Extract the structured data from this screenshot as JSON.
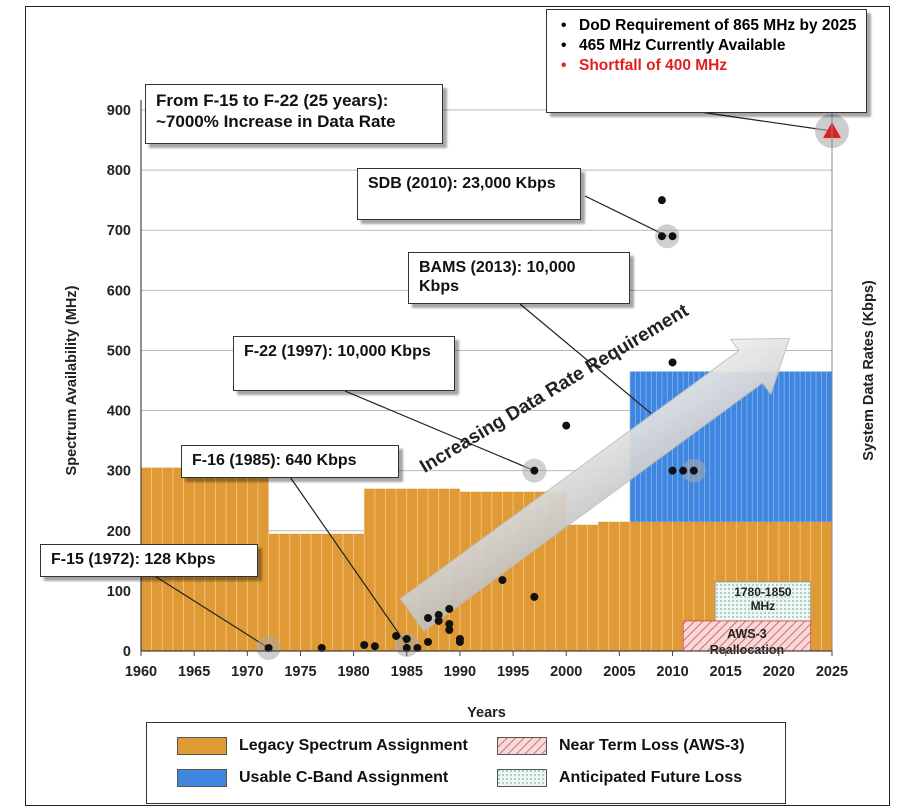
{
  "chart_data": {
    "type": "bar",
    "xlabel": "Years",
    "ylabel_left": "Spectrum Availability (MHz)",
    "ylabel_right": "System Data Rates (Kbps)",
    "xlim": [
      1960,
      2025
    ],
    "ylim": [
      0,
      900
    ],
    "x_ticks": [
      "1960",
      "1965",
      "1970",
      "1975",
      "1980",
      "1985",
      "1990",
      "1995",
      "2000",
      "2005",
      "2010",
      "2015",
      "2020",
      "2025"
    ],
    "y_ticks": [
      "0",
      "100",
      "200",
      "300",
      "400",
      "500",
      "600",
      "700",
      "800",
      "900"
    ],
    "grid": "horizontal",
    "legacy_spectrum": [
      {
        "start": 1960,
        "end": 1972,
        "value": 305
      },
      {
        "start": 1972,
        "end": 1981,
        "value": 195
      },
      {
        "start": 1981,
        "end": 1990,
        "value": 270
      },
      {
        "start": 1990,
        "end": 2000,
        "value": 265
      },
      {
        "start": 2000,
        "end": 2003,
        "value": 210
      },
      {
        "start": 2003,
        "end": 2025,
        "value": 215
      }
    ],
    "c_band": {
      "start": 2006,
      "end": 2025,
      "value": 465
    },
    "near_term_loss": {
      "start": 2011,
      "end": 2023,
      "value": 50,
      "label": "AWS-3 Reallocation"
    },
    "future_loss": {
      "start": 2014,
      "end": 2023,
      "value": 115,
      "label": "1780-1850 MHz"
    },
    "system_points": [
      {
        "x": 1972,
        "y": 5
      },
      {
        "x": 1977,
        "y": 5
      },
      {
        "x": 1981,
        "y": 10
      },
      {
        "x": 1982,
        "y": 8
      },
      {
        "x": 1984,
        "y": 25
      },
      {
        "x": 1985,
        "y": 20
      },
      {
        "x": 1985,
        "y": 5
      },
      {
        "x": 1986,
        "y": 5
      },
      {
        "x": 1987,
        "y": 55
      },
      {
        "x": 1987,
        "y": 15
      },
      {
        "x": 1988,
        "y": 60
      },
      {
        "x": 1988,
        "y": 50
      },
      {
        "x": 1989,
        "y": 70
      },
      {
        "x": 1989,
        "y": 45
      },
      {
        "x": 1989,
        "y": 35
      },
      {
        "x": 1990,
        "y": 20
      },
      {
        "x": 1990,
        "y": 15
      },
      {
        "x": 1994,
        "y": 118
      },
      {
        "x": 1997,
        "y": 90
      },
      {
        "x": 1997,
        "y": 300
      },
      {
        "x": 2000,
        "y": 375
      },
      {
        "x": 2009,
        "y": 750
      },
      {
        "x": 2009,
        "y": 690
      },
      {
        "x": 2010,
        "y": 690
      },
      {
        "x": 2010,
        "y": 480
      },
      {
        "x": 2010,
        "y": 300
      },
      {
        "x": 2011,
        "y": 300
      },
      {
        "x": 2012,
        "y": 300
      }
    ],
    "requirement_point": {
      "x": 2025,
      "y": 865
    }
  },
  "annotations": {
    "headline": "From F-15 to F-22 (25 years): ~7000% Increase in Data Rate",
    "sdb": "SDB (2010): 23,000 Kbps",
    "bams": "BAMS (2013): 10,000 Kbps",
    "f22": "F-22 (1997): 10,000 Kbps",
    "f16": "F-16 (1985): 640 Kbps",
    "f15": "F-15 (1972): 128 Kbps",
    "arrow": "Increasing Data Rate Requirement",
    "future_loss_label": "1780-1850 MHz",
    "near_term_label": "AWS-3 Reallocation"
  },
  "requirement_box": {
    "line1": "DoD Requirement of 865 MHz by 2025",
    "line2": "465 MHz Currently Available",
    "line3": "Shortfall of 400 MHz"
  },
  "legend": {
    "legacy": "Legacy Spectrum Assignment",
    "cband": "Usable C-Band Assignment",
    "near_term": "Near Term Loss (AWS-3)",
    "future": "Anticipated Future Loss"
  },
  "colors": {
    "legacy": "#e09a35",
    "cband": "#3f86e0",
    "near_term": "#e2a3a3",
    "future": "#dfefe9",
    "shortfall": "#e02020"
  },
  "bullet": "•"
}
